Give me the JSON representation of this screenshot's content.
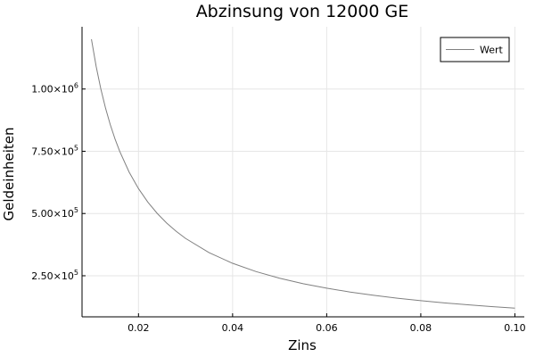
{
  "chart_data": {
    "type": "line",
    "title": "Abzinsung von 12000 GE",
    "xlabel": "Zins",
    "ylabel": "Geldeinheiten",
    "xlim": [
      0.008,
      0.102
    ],
    "ylim": [
      85000,
      1250000
    ],
    "x_ticks": [
      0.02,
      0.04,
      0.06,
      0.08,
      0.1
    ],
    "x_tick_labels": [
      "0.02",
      "0.04",
      "0.06",
      "0.08",
      "0.10"
    ],
    "y_ticks": [
      250000,
      500000,
      750000,
      1000000
    ],
    "y_tick_labels": [
      {
        "mantissa": "2.50",
        "times": "×",
        "base": "10",
        "exp": "5"
      },
      {
        "mantissa": "5.00",
        "times": "×",
        "base": "10",
        "exp": "5"
      },
      {
        "mantissa": "7.50",
        "times": "×",
        "base": "10",
        "exp": "5"
      },
      {
        "mantissa": "1.00",
        "times": "×",
        "base": "10",
        "exp": "6"
      }
    ],
    "grid": true,
    "legend_position": "top-right",
    "series": [
      {
        "name": "Wert",
        "color": "#808080",
        "x": [
          0.01,
          0.011,
          0.012,
          0.013,
          0.014,
          0.015,
          0.016,
          0.018,
          0.02,
          0.022,
          0.024,
          0.026,
          0.028,
          0.03,
          0.035,
          0.04,
          0.045,
          0.05,
          0.055,
          0.06,
          0.065,
          0.07,
          0.075,
          0.08,
          0.085,
          0.09,
          0.095,
          0.1
        ],
        "y": [
          1200000,
          1090909,
          1000000,
          923077,
          857143,
          800000,
          750000,
          666667,
          600000,
          545455,
          500000,
          461538,
          428571,
          400000,
          342857,
          300000,
          266667,
          240000,
          218182,
          200000,
          184615,
          171429,
          160000,
          150000,
          141176,
          133333,
          126316,
          120000
        ]
      }
    ]
  }
}
